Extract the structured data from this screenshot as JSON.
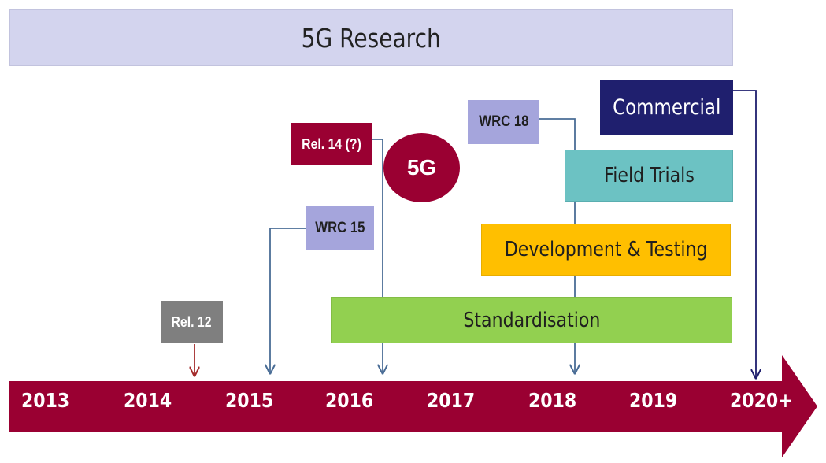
{
  "research": {
    "label": "5G Research"
  },
  "badges": {
    "commercial": "Commercial",
    "wrc18": "WRC 18",
    "rel14": "Rel. 14 (?)",
    "fiveg": "5G",
    "field_trials": "Field Trials",
    "wrc15": "WRC 15",
    "dev_testing": "Development & Testing",
    "rel12": "Rel. 12",
    "standardisation": "Standardisation"
  },
  "timeline": {
    "years": [
      "2013",
      "2014",
      "2015",
      "2016",
      "2017",
      "2018",
      "2019",
      "2020+"
    ]
  },
  "colors": {
    "research": "#d3d4ee",
    "commercial": "#1f1f6e",
    "wrc": "#a5a5dc",
    "rel14": "#9a0032",
    "fiveg": "#9a0032",
    "field_trials": "#6cc2c3",
    "dev_testing": "#ffbf00",
    "standardisation": "#92d050",
    "rel12": "#7f7f7f",
    "timeline": "#9a0032",
    "connector": "#4a6d96",
    "rel12_arrow": "#a32a2a"
  }
}
